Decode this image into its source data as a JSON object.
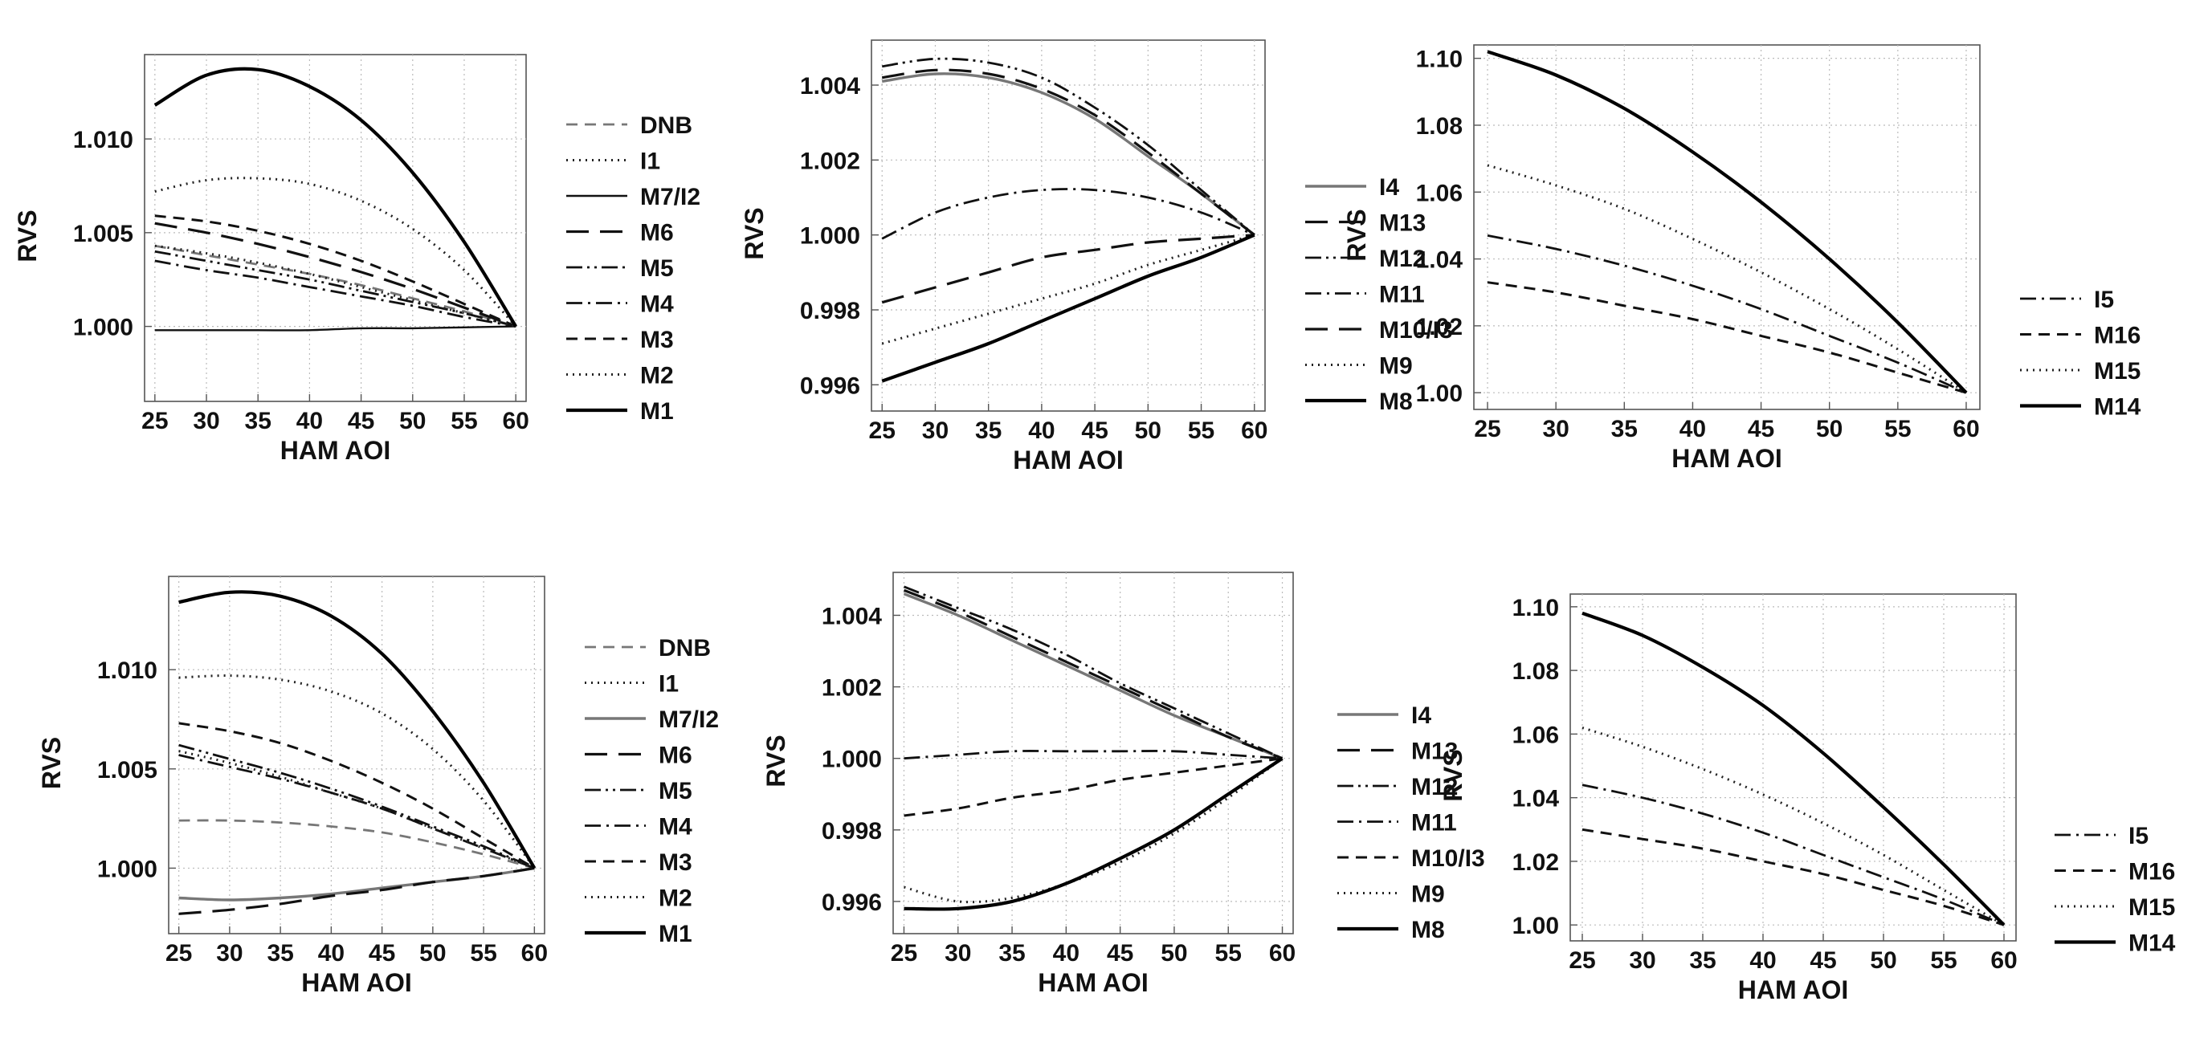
{
  "chart_data": [
    {
      "type": "line",
      "xlabel": "HAM AOI",
      "ylabel": "RVS",
      "xlim": [
        24,
        61
      ],
      "ylim": [
        0.996,
        1.0145
      ],
      "xticks": [
        25,
        30,
        35,
        40,
        45,
        50,
        55,
        60
      ],
      "yticks": [
        1.0,
        1.005,
        1.01
      ],
      "ytick_labels": [
        "1.000",
        "1.005",
        "1.010"
      ],
      "grid": true,
      "legend_position": "right",
      "x": [
        25,
        30,
        35,
        40,
        45,
        50,
        55,
        60
      ],
      "series": [
        {
          "name": "DNB",
          "style": "dash-gray",
          "values": [
            1.0043,
            1.0038,
            1.0033,
            1.0028,
            1.0022,
            1.0015,
            1.0008,
            1.0
          ]
        },
        {
          "name": "I1",
          "style": "dot",
          "values": [
            1.0072,
            1.0078,
            1.0079,
            1.0076,
            1.0067,
            1.0052,
            1.003,
            1.0
          ]
        },
        {
          "name": "M7/I2",
          "style": "solid-thin",
          "values": [
            0.9998,
            0.9998,
            0.9998,
            0.9998,
            0.9999,
            0.9999,
            0.99995,
            1.0
          ]
        },
        {
          "name": "M6",
          "style": "longdash",
          "values": [
            1.0055,
            1.005,
            1.0044,
            1.0037,
            1.0029,
            1.002,
            1.001,
            1.0
          ]
        },
        {
          "name": "M5",
          "style": "dashdotdot",
          "values": [
            1.004,
            1.0035,
            1.003,
            1.0025,
            1.0019,
            1.0013,
            1.0007,
            1.0
          ]
        },
        {
          "name": "M4",
          "style": "dashdot",
          "values": [
            1.0035,
            1.003,
            1.0026,
            1.0021,
            1.0016,
            1.0011,
            1.0005,
            1.0
          ]
        },
        {
          "name": "M3",
          "style": "shortdash",
          "values": [
            1.0059,
            1.0056,
            1.0051,
            1.0044,
            1.0035,
            1.0024,
            1.0012,
            1.0
          ]
        },
        {
          "name": "M2",
          "style": "dot",
          "values": [
            1.0043,
            1.0039,
            1.0034,
            1.0028,
            1.0021,
            1.0014,
            1.0007,
            1.0
          ]
        },
        {
          "name": "M1",
          "style": "solid",
          "values": [
            1.0118,
            1.0134,
            1.0137,
            1.0128,
            1.011,
            1.0082,
            1.0045,
            1.0
          ]
        }
      ]
    },
    {
      "type": "line",
      "xlabel": "HAM AOI",
      "ylabel": "RVS",
      "xlim": [
        24,
        61
      ],
      "ylim": [
        0.9953,
        1.0052
      ],
      "xticks": [
        25,
        30,
        35,
        40,
        45,
        50,
        55,
        60
      ],
      "yticks": [
        0.996,
        0.998,
        1.0,
        1.002,
        1.004
      ],
      "ytick_labels": [
        "0.996",
        "0.998",
        "1.000",
        "1.002",
        "1.004"
      ],
      "grid": true,
      "legend_position": "right",
      "x": [
        25,
        30,
        35,
        40,
        45,
        50,
        55,
        60
      ],
      "series": [
        {
          "name": "I4",
          "style": "solid-gray",
          "values": [
            1.0041,
            1.0043,
            1.0042,
            1.0038,
            1.0031,
            1.0021,
            1.0011,
            1.0
          ]
        },
        {
          "name": "M13",
          "style": "longdash",
          "values": [
            1.0042,
            1.0044,
            1.0043,
            1.0039,
            1.0032,
            1.0022,
            1.0011,
            1.0
          ]
        },
        {
          "name": "M12",
          "style": "dashdotdot",
          "values": [
            1.0045,
            1.0047,
            1.0046,
            1.0042,
            1.0034,
            1.0024,
            1.0012,
            1.0
          ]
        },
        {
          "name": "M11",
          "style": "dashdot",
          "values": [
            0.9999,
            1.0006,
            1.001,
            1.0012,
            1.0012,
            1.001,
            1.0006,
            1.0
          ]
        },
        {
          "name": "M10/I3",
          "style": "longdash",
          "values": [
            0.9982,
            0.9986,
            0.999,
            0.9994,
            0.9996,
            0.9998,
            0.9999,
            1.0
          ]
        },
        {
          "name": "M9",
          "style": "dot",
          "values": [
            0.9971,
            0.9975,
            0.9979,
            0.9983,
            0.9987,
            0.9992,
            0.9996,
            1.0
          ]
        },
        {
          "name": "M8",
          "style": "solid",
          "values": [
            0.9961,
            0.9966,
            0.9971,
            0.9977,
            0.9983,
            0.9989,
            0.9994,
            1.0
          ]
        }
      ]
    },
    {
      "type": "line",
      "xlabel": "HAM AOI",
      "ylabel": "RVS",
      "xlim": [
        24,
        61
      ],
      "ylim": [
        0.995,
        1.104
      ],
      "xticks": [
        25,
        30,
        35,
        40,
        45,
        50,
        55,
        60
      ],
      "yticks": [
        1.0,
        1.02,
        1.04,
        1.06,
        1.08,
        1.1
      ],
      "ytick_labels": [
        "1.00",
        "1.02",
        "1.04",
        "1.06",
        "1.08",
        "1.10"
      ],
      "grid": true,
      "legend_position": "right",
      "x": [
        25,
        30,
        35,
        40,
        45,
        50,
        55,
        60
      ],
      "series": [
        {
          "name": "I5",
          "style": "dashdot",
          "values": [
            1.047,
            1.043,
            1.038,
            1.032,
            1.025,
            1.017,
            1.009,
            1.0
          ]
        },
        {
          "name": "M16",
          "style": "shortdash",
          "values": [
            1.033,
            1.03,
            1.026,
            1.022,
            1.017,
            1.012,
            1.006,
            1.0
          ]
        },
        {
          "name": "M15",
          "style": "dot",
          "values": [
            1.068,
            1.062,
            1.055,
            1.046,
            1.036,
            1.025,
            1.013,
            1.0
          ]
        },
        {
          "name": "M14",
          "style": "solid",
          "values": [
            1.102,
            1.095,
            1.085,
            1.072,
            1.057,
            1.04,
            1.021,
            1.0
          ]
        }
      ]
    },
    {
      "type": "line",
      "xlabel": "HAM AOI",
      "ylabel": "RVS",
      "xlim": [
        24,
        61
      ],
      "ylim": [
        0.9967,
        1.0147
      ],
      "xticks": [
        25,
        30,
        35,
        40,
        45,
        50,
        55,
        60
      ],
      "yticks": [
        1.0,
        1.005,
        1.01
      ],
      "ytick_labels": [
        "1.000",
        "1.005",
        "1.010"
      ],
      "grid": true,
      "legend_position": "right",
      "x": [
        25,
        30,
        35,
        40,
        45,
        50,
        55,
        60
      ],
      "series": [
        {
          "name": "DNB",
          "style": "dash-gray",
          "values": [
            1.0024,
            1.0024,
            1.0023,
            1.0021,
            1.0018,
            1.0013,
            1.0007,
            1.0
          ]
        },
        {
          "name": "I1",
          "style": "dot",
          "values": [
            1.0096,
            1.0097,
            1.0095,
            1.0089,
            1.0078,
            1.006,
            1.0034,
            1.0
          ]
        },
        {
          "name": "M7/I2",
          "style": "solid-gray",
          "values": [
            0.9985,
            0.9984,
            0.9985,
            0.9987,
            0.999,
            0.9993,
            0.9996,
            1.0
          ]
        },
        {
          "name": "M6",
          "style": "longdash",
          "values": [
            0.9977,
            0.9979,
            0.9982,
            0.9986,
            0.9989,
            0.9993,
            0.9996,
            1.0
          ]
        },
        {
          "name": "M5",
          "style": "dashdotdot",
          "values": [
            1.0062,
            1.0055,
            1.0048,
            1.004,
            1.0031,
            1.0021,
            1.0011,
            1.0
          ]
        },
        {
          "name": "M4",
          "style": "dashdot",
          "values": [
            1.0057,
            1.0051,
            1.0045,
            1.0038,
            1.003,
            1.002,
            1.001,
            1.0
          ]
        },
        {
          "name": "M3",
          "style": "shortdash",
          "values": [
            1.0073,
            1.0069,
            1.0063,
            1.0054,
            1.0043,
            1.003,
            1.0015,
            1.0
          ]
        },
        {
          "name": "M2",
          "style": "dot",
          "values": [
            1.0059,
            1.0053,
            1.0046,
            1.0038,
            1.003,
            1.002,
            1.001,
            1.0
          ]
        },
        {
          "name": "M1",
          "style": "solid",
          "values": [
            1.0134,
            1.0139,
            1.0137,
            1.0127,
            1.0108,
            1.0079,
            1.0043,
            1.0
          ]
        }
      ]
    },
    {
      "type": "line",
      "xlabel": "HAM AOI",
      "ylabel": "RVS",
      "xlim": [
        24,
        61
      ],
      "ylim": [
        0.9951,
        1.0052
      ],
      "xticks": [
        25,
        30,
        35,
        40,
        45,
        50,
        55,
        60
      ],
      "yticks": [
        0.996,
        0.998,
        1.0,
        1.002,
        1.004
      ],
      "ytick_labels": [
        "0.996",
        "0.998",
        "1.000",
        "1.002",
        "1.004"
      ],
      "grid": true,
      "legend_position": "right",
      "x": [
        25,
        30,
        35,
        40,
        45,
        50,
        55,
        60
      ],
      "series": [
        {
          "name": "I4",
          "style": "solid-gray",
          "values": [
            1.0046,
            1.004,
            1.0033,
            1.0026,
            1.0019,
            1.0012,
            1.0006,
            1.0
          ]
        },
        {
          "name": "M13",
          "style": "longdash",
          "values": [
            1.0047,
            1.0041,
            1.0034,
            1.0027,
            1.002,
            1.0013,
            1.0006,
            1.0
          ]
        },
        {
          "name": "M12",
          "style": "dashdotdot",
          "values": [
            1.0048,
            1.0042,
            1.0036,
            1.0029,
            1.0021,
            1.0014,
            1.0007,
            1.0
          ]
        },
        {
          "name": "M11",
          "style": "dashdot",
          "values": [
            1.0,
            1.0001,
            1.0002,
            1.0002,
            1.0002,
            1.0002,
            1.0001,
            1.0
          ]
        },
        {
          "name": "M10/I3",
          "style": "shortdash",
          "values": [
            0.9984,
            0.9986,
            0.9989,
            0.9991,
            0.9994,
            0.9996,
            0.9998,
            1.0
          ]
        },
        {
          "name": "M9",
          "style": "dot",
          "values": [
            0.9964,
            0.996,
            0.9961,
            0.9965,
            0.9971,
            0.9979,
            0.9989,
            1.0
          ]
        },
        {
          "name": "M8",
          "style": "solid",
          "values": [
            0.9958,
            0.9958,
            0.996,
            0.9965,
            0.9972,
            0.998,
            0.999,
            1.0
          ]
        }
      ]
    },
    {
      "type": "line",
      "xlabel": "HAM AOI",
      "ylabel": "RVS",
      "xlim": [
        24,
        61
      ],
      "ylim": [
        0.995,
        1.104
      ],
      "xticks": [
        25,
        30,
        35,
        40,
        45,
        50,
        55,
        60
      ],
      "yticks": [
        1.0,
        1.02,
        1.04,
        1.06,
        1.08,
        1.1
      ],
      "ytick_labels": [
        "1.00",
        "1.02",
        "1.04",
        "1.06",
        "1.08",
        "1.10"
      ],
      "grid": true,
      "legend_position": "right",
      "x": [
        25,
        30,
        35,
        40,
        45,
        50,
        55,
        60
      ],
      "series": [
        {
          "name": "I5",
          "style": "dashdot",
          "values": [
            1.044,
            1.04,
            1.035,
            1.029,
            1.022,
            1.015,
            1.008,
            1.0
          ]
        },
        {
          "name": "M16",
          "style": "shortdash",
          "values": [
            1.03,
            1.027,
            1.024,
            1.02,
            1.016,
            1.011,
            1.006,
            1.0
          ]
        },
        {
          "name": "M15",
          "style": "dot",
          "values": [
            1.062,
            1.056,
            1.049,
            1.041,
            1.032,
            1.022,
            1.011,
            1.0
          ]
        },
        {
          "name": "M14",
          "style": "solid",
          "values": [
            1.098,
            1.091,
            1.081,
            1.069,
            1.054,
            1.037,
            1.019,
            1.0
          ]
        }
      ]
    }
  ]
}
